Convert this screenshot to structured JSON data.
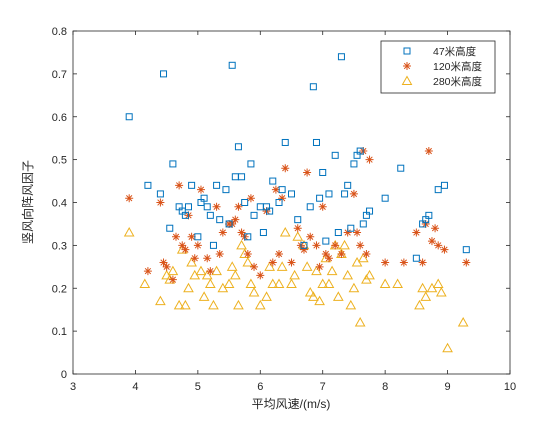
{
  "chart_data": {
    "type": "scatter",
    "title": "",
    "xlabel": "平均风速/(m/s)",
    "ylabel": "竖风向阵风因子",
    "xlim": [
      3,
      10
    ],
    "ylim": [
      0,
      0.8
    ],
    "xticks": [
      3,
      4,
      5,
      6,
      7,
      8,
      9,
      10
    ],
    "yticks": [
      0,
      0.1,
      0.2,
      0.3,
      0.4,
      0.5,
      0.6,
      0.7,
      0.8
    ],
    "xtick_labels": [
      "3",
      "4",
      "5",
      "6",
      "7",
      "8",
      "9",
      "10"
    ],
    "ytick_labels": [
      "0",
      "0.1",
      "0.2",
      "0.3",
      "0.4",
      "0.5",
      "0.6",
      "0.7",
      "0.8"
    ],
    "grid": false,
    "legend_position": "top-right",
    "series": [
      {
        "name": "47米高度",
        "marker": "square",
        "color": "#0072BD",
        "points": [
          [
            3.9,
            0.6
          ],
          [
            4.2,
            0.44
          ],
          [
            4.4,
            0.42
          ],
          [
            4.45,
            0.7
          ],
          [
            4.55,
            0.34
          ],
          [
            4.6,
            0.49
          ],
          [
            4.7,
            0.39
          ],
          [
            4.75,
            0.38
          ],
          [
            4.8,
            0.37
          ],
          [
            4.85,
            0.39
          ],
          [
            4.9,
            0.44
          ],
          [
            5.0,
            0.32
          ],
          [
            5.05,
            0.4
          ],
          [
            5.1,
            0.41
          ],
          [
            5.15,
            0.39
          ],
          [
            5.2,
            0.37
          ],
          [
            5.25,
            0.3
          ],
          [
            5.3,
            0.44
          ],
          [
            5.35,
            0.36
          ],
          [
            5.45,
            0.43
          ],
          [
            5.5,
            0.35
          ],
          [
            5.55,
            0.72
          ],
          [
            5.6,
            0.46
          ],
          [
            5.65,
            0.53
          ],
          [
            5.7,
            0.46
          ],
          [
            5.75,
            0.4
          ],
          [
            5.8,
            0.32
          ],
          [
            5.85,
            0.49
          ],
          [
            5.9,
            0.37
          ],
          [
            6.0,
            0.39
          ],
          [
            6.05,
            0.33
          ],
          [
            6.1,
            0.39
          ],
          [
            6.15,
            0.38
          ],
          [
            6.2,
            0.45
          ],
          [
            6.3,
            0.4
          ],
          [
            6.35,
            0.43
          ],
          [
            6.4,
            0.54
          ],
          [
            6.5,
            0.42
          ],
          [
            6.6,
            0.36
          ],
          [
            6.7,
            0.3
          ],
          [
            6.8,
            0.39
          ],
          [
            6.85,
            0.67
          ],
          [
            6.9,
            0.54
          ],
          [
            6.95,
            0.41
          ],
          [
            7.0,
            0.47
          ],
          [
            7.05,
            0.31
          ],
          [
            7.1,
            0.42
          ],
          [
            7.2,
            0.51
          ],
          [
            7.25,
            0.33
          ],
          [
            7.3,
            0.74
          ],
          [
            7.35,
            0.42
          ],
          [
            7.4,
            0.44
          ],
          [
            7.45,
            0.34
          ],
          [
            7.5,
            0.49
          ],
          [
            7.55,
            0.51
          ],
          [
            7.6,
            0.52
          ],
          [
            7.65,
            0.35
          ],
          [
            7.7,
            0.37
          ],
          [
            7.75,
            0.38
          ],
          [
            8.0,
            0.41
          ],
          [
            8.25,
            0.48
          ],
          [
            8.5,
            0.27
          ],
          [
            8.6,
            0.35
          ],
          [
            8.65,
            0.36
          ],
          [
            8.7,
            0.37
          ],
          [
            8.85,
            0.43
          ],
          [
            8.95,
            0.44
          ],
          [
            9.3,
            0.29
          ]
        ]
      },
      {
        "name": "120米高度",
        "marker": "star",
        "color": "#D95319",
        "points": [
          [
            3.9,
            0.41
          ],
          [
            4.2,
            0.24
          ],
          [
            4.4,
            0.4
          ],
          [
            4.45,
            0.26
          ],
          [
            4.5,
            0.25
          ],
          [
            4.6,
            0.22
          ],
          [
            4.65,
            0.32
          ],
          [
            4.7,
            0.44
          ],
          [
            4.75,
            0.3
          ],
          [
            4.8,
            0.29
          ],
          [
            4.85,
            0.37
          ],
          [
            4.9,
            0.32
          ],
          [
            4.95,
            0.27
          ],
          [
            5.0,
            0.3
          ],
          [
            5.05,
            0.43
          ],
          [
            5.15,
            0.27
          ],
          [
            5.2,
            0.24
          ],
          [
            5.3,
            0.39
          ],
          [
            5.35,
            0.28
          ],
          [
            5.4,
            0.33
          ],
          [
            5.5,
            0.35
          ],
          [
            5.55,
            0.35
          ],
          [
            5.6,
            0.36
          ],
          [
            5.65,
            0.39
          ],
          [
            5.7,
            0.33
          ],
          [
            5.75,
            0.32
          ],
          [
            5.8,
            0.28
          ],
          [
            5.85,
            0.41
          ],
          [
            5.9,
            0.25
          ],
          [
            6.0,
            0.23
          ],
          [
            6.1,
            0.38
          ],
          [
            6.2,
            0.26
          ],
          [
            6.25,
            0.43
          ],
          [
            6.3,
            0.28
          ],
          [
            6.35,
            0.41
          ],
          [
            6.4,
            0.48
          ],
          [
            6.5,
            0.26
          ],
          [
            6.6,
            0.34
          ],
          [
            6.65,
            0.3
          ],
          [
            6.7,
            0.29
          ],
          [
            6.75,
            0.47
          ],
          [
            6.8,
            0.32
          ],
          [
            6.9,
            0.3
          ],
          [
            6.95,
            0.25
          ],
          [
            7.0,
            0.39
          ],
          [
            7.05,
            0.28
          ],
          [
            7.1,
            0.27
          ],
          [
            7.2,
            0.3
          ],
          [
            7.3,
            0.28
          ],
          [
            7.4,
            0.33
          ],
          [
            7.5,
            0.42
          ],
          [
            7.55,
            0.33
          ],
          [
            7.6,
            0.3
          ],
          [
            7.65,
            0.52
          ],
          [
            7.7,
            0.28
          ],
          [
            7.75,
            0.5
          ],
          [
            8.0,
            0.26
          ],
          [
            8.3,
            0.26
          ],
          [
            8.5,
            0.33
          ],
          [
            8.6,
            0.26
          ],
          [
            8.65,
            0.35
          ],
          [
            8.7,
            0.52
          ],
          [
            8.75,
            0.31
          ],
          [
            8.8,
            0.34
          ],
          [
            8.85,
            0.3
          ],
          [
            8.95,
            0.29
          ],
          [
            9.3,
            0.26
          ]
        ]
      },
      {
        "name": "280米高度",
        "marker": "triangle",
        "color": "#EDB120",
        "points": [
          [
            3.9,
            0.33
          ],
          [
            4.15,
            0.21
          ],
          [
            4.4,
            0.17
          ],
          [
            4.5,
            0.23
          ],
          [
            4.55,
            0.22
          ],
          [
            4.6,
            0.24
          ],
          [
            4.7,
            0.16
          ],
          [
            4.75,
            0.29
          ],
          [
            4.8,
            0.16
          ],
          [
            4.85,
            0.2
          ],
          [
            4.9,
            0.26
          ],
          [
            4.95,
            0.23
          ],
          [
            5.05,
            0.24
          ],
          [
            5.1,
            0.18
          ],
          [
            5.15,
            0.23
          ],
          [
            5.2,
            0.21
          ],
          [
            5.25,
            0.16
          ],
          [
            5.3,
            0.24
          ],
          [
            5.4,
            0.2
          ],
          [
            5.5,
            0.21
          ],
          [
            5.55,
            0.25
          ],
          [
            5.6,
            0.23
          ],
          [
            5.65,
            0.16
          ],
          [
            5.7,
            0.3
          ],
          [
            5.75,
            0.28
          ],
          [
            5.8,
            0.26
          ],
          [
            5.85,
            0.21
          ],
          [
            5.9,
            0.19
          ],
          [
            6.0,
            0.16
          ],
          [
            6.1,
            0.18
          ],
          [
            6.15,
            0.25
          ],
          [
            6.2,
            0.21
          ],
          [
            6.3,
            0.21
          ],
          [
            6.35,
            0.25
          ],
          [
            6.4,
            0.33
          ],
          [
            6.5,
            0.21
          ],
          [
            6.55,
            0.23
          ],
          [
            6.6,
            0.32
          ],
          [
            6.7,
            0.3
          ],
          [
            6.75,
            0.25
          ],
          [
            6.8,
            0.19
          ],
          [
            6.85,
            0.18
          ],
          [
            6.9,
            0.24
          ],
          [
            6.95,
            0.17
          ],
          [
            7.0,
            0.21
          ],
          [
            7.05,
            0.27
          ],
          [
            7.1,
            0.21
          ],
          [
            7.15,
            0.24
          ],
          [
            7.2,
            0.3
          ],
          [
            7.25,
            0.18
          ],
          [
            7.3,
            0.28
          ],
          [
            7.35,
            0.3
          ],
          [
            7.4,
            0.23
          ],
          [
            7.45,
            0.16
          ],
          [
            7.5,
            0.2
          ],
          [
            7.55,
            0.26
          ],
          [
            7.6,
            0.12
          ],
          [
            7.65,
            0.27
          ],
          [
            7.7,
            0.22
          ],
          [
            7.75,
            0.23
          ],
          [
            8.0,
            0.21
          ],
          [
            8.2,
            0.21
          ],
          [
            8.55,
            0.16
          ],
          [
            8.6,
            0.2
          ],
          [
            8.65,
            0.18
          ],
          [
            8.75,
            0.2
          ],
          [
            8.85,
            0.21
          ],
          [
            8.9,
            0.19
          ],
          [
            9.0,
            0.06
          ],
          [
            9.25,
            0.12
          ]
        ]
      }
    ]
  }
}
